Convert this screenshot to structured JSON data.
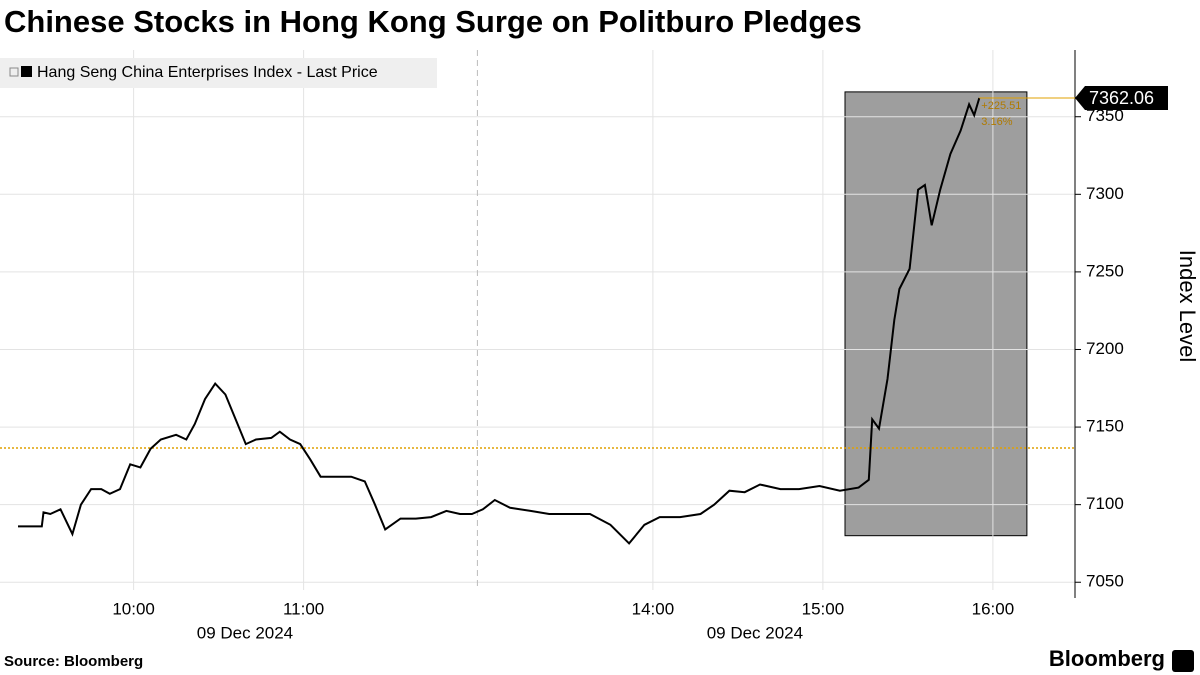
{
  "chart_data": {
    "type": "line",
    "title": "Chinese Stocks in Hong Kong Surge on Politburo Pledges",
    "y_axis_label": "Index Level",
    "source": "Source: Bloomberg",
    "brand": "Bloomberg",
    "x_group_labels": [
      "09 Dec 2024",
      "09 Dec 2024"
    ],
    "x": [
      9.32,
      9.46,
      9.47,
      9.51,
      9.57,
      9.64,
      9.69,
      9.75,
      9.81,
      9.86,
      9.92,
      9.98,
      10.04,
      10.1,
      10.16,
      10.25,
      10.31,
      10.36,
      10.42,
      10.48,
      10.54,
      10.6,
      10.66,
      10.72,
      10.81,
      10.86,
      10.92,
      10.98,
      11.04,
      11.1,
      11.19,
      11.28,
      11.36,
      11.42,
      11.48,
      11.57,
      11.66,
      11.75,
      11.84,
      11.92,
      11.99,
      13.0,
      13.07,
      13.16,
      13.28,
      13.39,
      13.51,
      13.63,
      13.75,
      13.86,
      13.95,
      14.04,
      14.16,
      14.28,
      14.36,
      14.45,
      14.54,
      14.63,
      14.75,
      14.86,
      14.98,
      15.1,
      15.21,
      15.27,
      15.29,
      15.33,
      15.38,
      15.42,
      15.45,
      15.51,
      15.56,
      15.6,
      15.64,
      15.69,
      15.75,
      15.81,
      15.86,
      15.89,
      15.92
    ],
    "series": [
      {
        "name": "Hang Seng China Enterprises Index - Last Price",
        "color": "#000000",
        "values": [
          7086,
          7086,
          7095,
          7094,
          7097,
          7081,
          7100,
          7110,
          7110,
          7107,
          7110,
          7126,
          7124,
          7136,
          7142,
          7145,
          7142,
          7152,
          7168,
          7178,
          7171,
          7155,
          7139,
          7142,
          7143,
          7147,
          7142,
          7139,
          7129,
          7118,
          7118,
          7118,
          7115,
          7100,
          7084,
          7091,
          7091,
          7092,
          7096,
          7094,
          7094,
          7097,
          7103,
          7098,
          7096,
          7094,
          7094,
          7094,
          7087,
          7075,
          7087,
          7092,
          7092,
          7094,
          7100,
          7109,
          7108,
          7113,
          7110,
          7110,
          7112,
          7109,
          7111,
          7116,
          7155,
          7149,
          7181,
          7219,
          7239,
          7252,
          7303,
          7306,
          7280,
          7303,
          7326,
          7341,
          7358,
          7351,
          7362.06
        ]
      }
    ],
    "xticks": [
      {
        "value": 10,
        "label": "10:00"
      },
      {
        "value": 11,
        "label": "11:00"
      },
      {
        "value": 14,
        "label": "14:00"
      },
      {
        "value": 15,
        "label": "15:00"
      },
      {
        "value": 16,
        "label": "16:00"
      }
    ],
    "ylim": [
      7045,
      7393
    ],
    "yticks": [
      7050,
      7100,
      7150,
      7200,
      7250,
      7300,
      7350
    ],
    "grid": true,
    "legend": "top-left",
    "reference_line": {
      "value": 7136.55,
      "color": "#e0a000"
    },
    "last_value": 7362.06,
    "highlight": {
      "x0": 15.13,
      "x1": 16.2,
      "y0": 7080,
      "y1": 7366,
      "color": "#9e9e9e"
    },
    "annotations": [
      "+225.51",
      "3.16%"
    ]
  }
}
